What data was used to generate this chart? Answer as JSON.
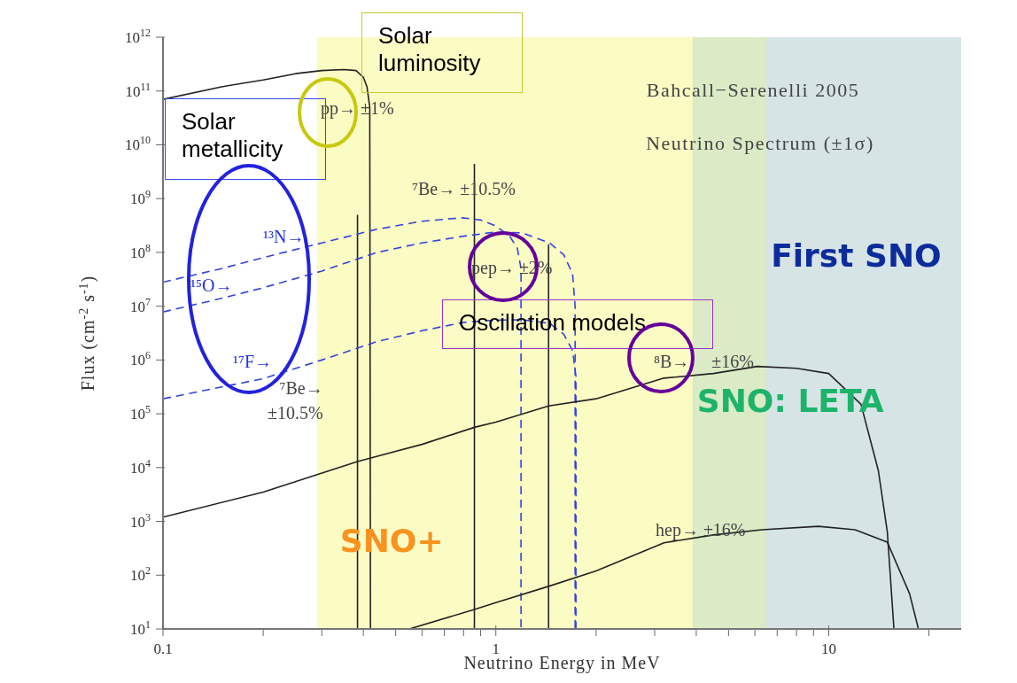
{
  "chart_data": {
    "type": "line",
    "title": "Bahcall−Serenelli 2005",
    "subtitle": "Neutrino Spectrum (±1σ)",
    "xlabel": "Neutrino Energy in MeV",
    "ylabel": "Flux (cm$^{-2}$ s$^{-1}$)",
    "log": "xy",
    "marker": "none",
    "xlim": [
      0.1,
      25
    ],
    "ylim": [
      10,
      1000000000000.0
    ],
    "xticks": [
      {
        "value": 0.1,
        "label": "0.1"
      },
      {
        "value": 0.2,
        "label": null
      },
      {
        "value": 0.3,
        "label": null
      },
      {
        "value": 0.4,
        "label": null
      },
      {
        "value": 0.5,
        "label": null
      },
      {
        "value": 0.6,
        "label": null
      },
      {
        "value": 0.7,
        "label": null
      },
      {
        "value": 0.8,
        "label": null
      },
      {
        "value": 0.9,
        "label": null
      },
      1,
      {
        "value": 2,
        "label": null
      },
      {
        "value": 3,
        "label": null
      },
      {
        "value": 4,
        "label": null
      },
      {
        "value": 5,
        "label": null
      },
      {
        "value": 6,
        "label": null
      },
      {
        "value": 7,
        "label": null
      },
      {
        "value": 8,
        "label": null
      },
      {
        "value": 9,
        "label": null
      },
      10,
      {
        "value": 20,
        "label": null
      }
    ],
    "yticks": [
      {
        "value": 10,
        "label": "10$^{1}$"
      },
      {
        "value": 100,
        "label": "10$^{2}$"
      },
      {
        "value": 1000,
        "label": "10$^{3}$"
      },
      {
        "value": 10000,
        "label": "10$^{4}$"
      },
      {
        "value": 100000,
        "label": "10$^{5}$"
      },
      {
        "value": 1000000,
        "label": "10$^{6}$"
      },
      {
        "value": 10000000,
        "label": "10$^{7}$"
      },
      {
        "value": 100000000,
        "label": "10$^{8}$"
      },
      {
        "value": 1000000000,
        "label": "10$^{9}$"
      },
      {
        "value": 10000000000,
        "label": "10$^{10}$"
      },
      {
        "value": 100000000000,
        "label": "10$^{11}$"
      },
      {
        "value": 1000000000000,
        "label": "10$^{12}$"
      }
    ],
    "series": [
      {
        "color": "#222222",
        "line_style": "solid",
        "x": [
          0.1,
          0.15,
          0.2,
          0.25,
          0.3,
          0.35,
          0.38,
          0.4,
          0.41,
          0.418,
          0.42
        ],
        "values": [
          70000000000.0,
          120000000000.0,
          160000000000.0,
          210000000000.0,
          240000000000.0,
          250000000000.0,
          240000000000.0,
          180000000000.0,
          120000000000.0,
          50000000000.0,
          10
        ]
      },
      {
        "color": "#222222",
        "line_style": "solid",
        "x": [
          0.384,
          0.384
        ],
        "values": [
          10,
          500000000.0
        ]
      },
      {
        "color": "#222222",
        "line_style": "solid",
        "x": [
          0.862,
          0.862
        ],
        "values": [
          10,
          4400000000.0
        ]
      },
      {
        "color": "#222222",
        "line_style": "solid",
        "x": [
          1.44,
          1.44
        ],
        "values": [
          10,
          140000000.0
        ]
      },
      {
        "color": "#3344dd",
        "line_style": "dashed",
        "x": [
          0.1,
          0.15,
          0.2,
          0.3,
          0.44,
          0.6,
          0.79,
          0.9,
          1.0,
          1.1,
          1.16,
          1.19,
          1.19
        ],
        "values": [
          28000000.0,
          50000000.0,
          80000000.0,
          150000000.0,
          270000000.0,
          380000000.0,
          440000000.0,
          400000000.0,
          310000000.0,
          200000000.0,
          120000000.0,
          50000000.0,
          10
        ]
      },
      {
        "color": "#3344dd",
        "line_style": "dashed",
        "x": [
          0.1,
          0.15,
          0.2,
          0.3,
          0.44,
          0.6,
          0.8,
          1.0,
          1.2,
          1.45,
          1.6,
          1.7,
          1.73,
          1.73
        ],
        "values": [
          7800000.0,
          14000000.0,
          22000000.0,
          45000000.0,
          100000000.0,
          150000000.0,
          200000000.0,
          240000000.0,
          230000000.0,
          150000000.0,
          90000000.0,
          40000000.0,
          10000000.0,
          10
        ]
      },
      {
        "color": "#3344dd",
        "line_style": "dashed",
        "x": [
          0.1,
          0.2,
          0.3,
          0.44,
          0.6,
          0.8,
          1.0,
          1.2,
          1.45,
          1.6,
          1.7,
          1.74,
          1.74
        ],
        "values": [
          190000.0,
          450000.0,
          1000000.0,
          2200000.0,
          3500000.0,
          5000000.0,
          5500000.0,
          5600000.0,
          4800000.0,
          3000000.0,
          1500000.0,
          500000.0,
          10
        ]
      },
      {
        "color": "#222222",
        "line_style": "solid",
        "x": [
          0.1,
          0.2,
          0.384,
          0.6,
          0.862,
          1.0,
          1.44,
          2,
          3.2,
          4.5,
          6.1,
          8,
          10,
          12.5,
          14.1,
          15,
          15.7
        ],
        "values": [
          1200.0,
          3500.0,
          13000.0,
          27000.0,
          56000.0,
          70000.0,
          140000.0,
          190000.0,
          460000.0,
          560000.0,
          760000.0,
          700000.0,
          560000.0,
          150000.0,
          8700.0,
          630,
          10
        ]
      },
      {
        "color": "#222222",
        "line_style": "solid",
        "x": [
          0.55,
          0.862,
          1.0,
          1.44,
          2,
          3.2,
          4.5,
          6.3,
          9.3,
          12,
          15,
          17.5,
          18.6
        ],
        "values": [
          10,
          23,
          31,
          62,
          120,
          400,
          560,
          700,
          810,
          700,
          410,
          45,
          10
        ]
      }
    ],
    "bands": [
      {
        "axis": "x",
        "from": 6.5,
        "to": 25,
        "label": "First SNO",
        "color": "#d4e2f0"
      },
      {
        "axis": "x",
        "from": 3.9,
        "to": 25,
        "label": "SNO: LETA",
        "color": "#cfe5c6"
      },
      {
        "axis": "x",
        "from": 0.29,
        "to": 25,
        "label": "SNO+",
        "color": "#fafab0"
      }
    ],
    "annotations": [
      "pp→ ±1%",
      "⁷Be→ ±10.5%",
      "pep→ ±2%",
      "¹³N→",
      "¹⁵O→",
      "¹⁷F→",
      "⁷Be→\n±10.5%",
      "⁸B→     ±16%",
      "hep→ ±16%",
      "Solar luminosity",
      "Solar metallicity",
      "Oscillation models"
    ]
  }
}
